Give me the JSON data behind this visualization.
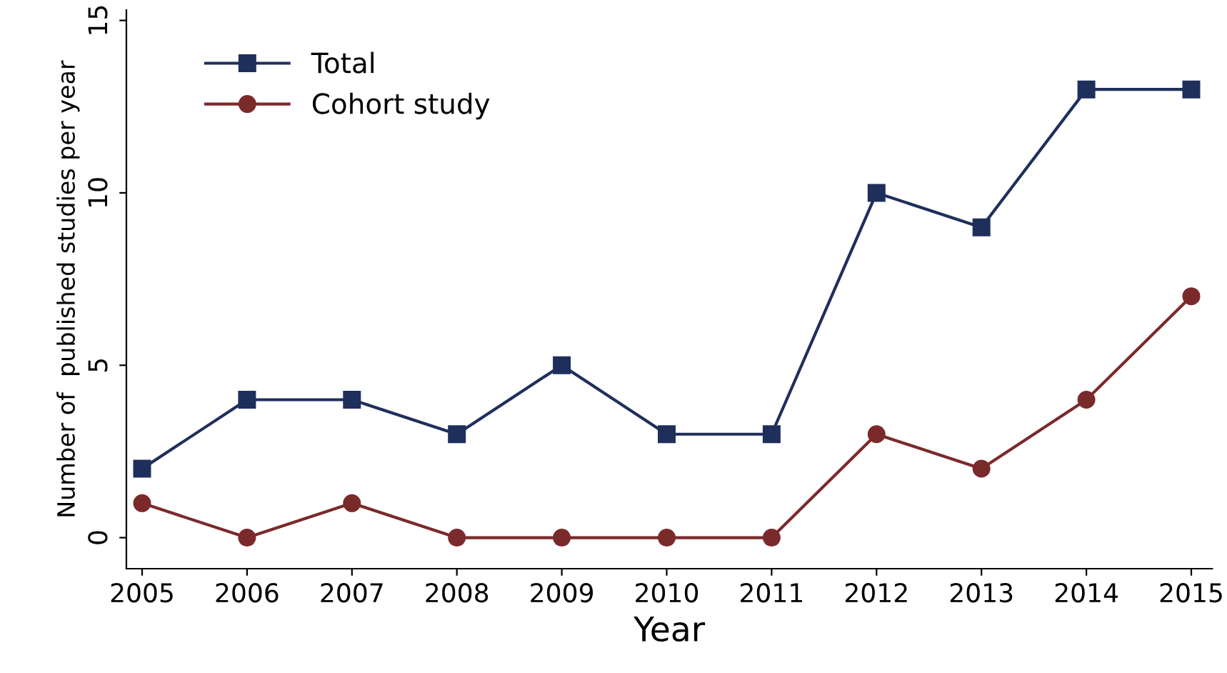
{
  "chart_data": {
    "type": "line",
    "xlabel": "Year",
    "ylabel": "Number of  published studies per year",
    "x": [
      2005,
      2006,
      2007,
      2008,
      2009,
      2010,
      2011,
      2012,
      2013,
      2014,
      2015
    ],
    "series": [
      {
        "name": "Total",
        "color": "#1f2f5c",
        "marker": "square",
        "values": [
          2,
          4,
          4,
          3,
          5,
          3,
          3,
          10,
          9,
          13,
          13
        ]
      },
      {
        "name": "Cohort study",
        "color": "#7b2a2c",
        "marker": "circle",
        "values": [
          1,
          0,
          1,
          0,
          0,
          0,
          0,
          3,
          2,
          4,
          7
        ]
      }
    ],
    "xlim": [
      2004.85,
      2015.2
    ],
    "xticks": [
      2005,
      2006,
      2007,
      2008,
      2009,
      2010,
      2011,
      2012,
      2013,
      2014,
      2015
    ],
    "ylim": [
      -0.9,
      15.3
    ],
    "yticks": [
      0,
      5,
      10,
      15
    ],
    "grid": false,
    "legend": "top left",
    "line_style": "solid"
  }
}
